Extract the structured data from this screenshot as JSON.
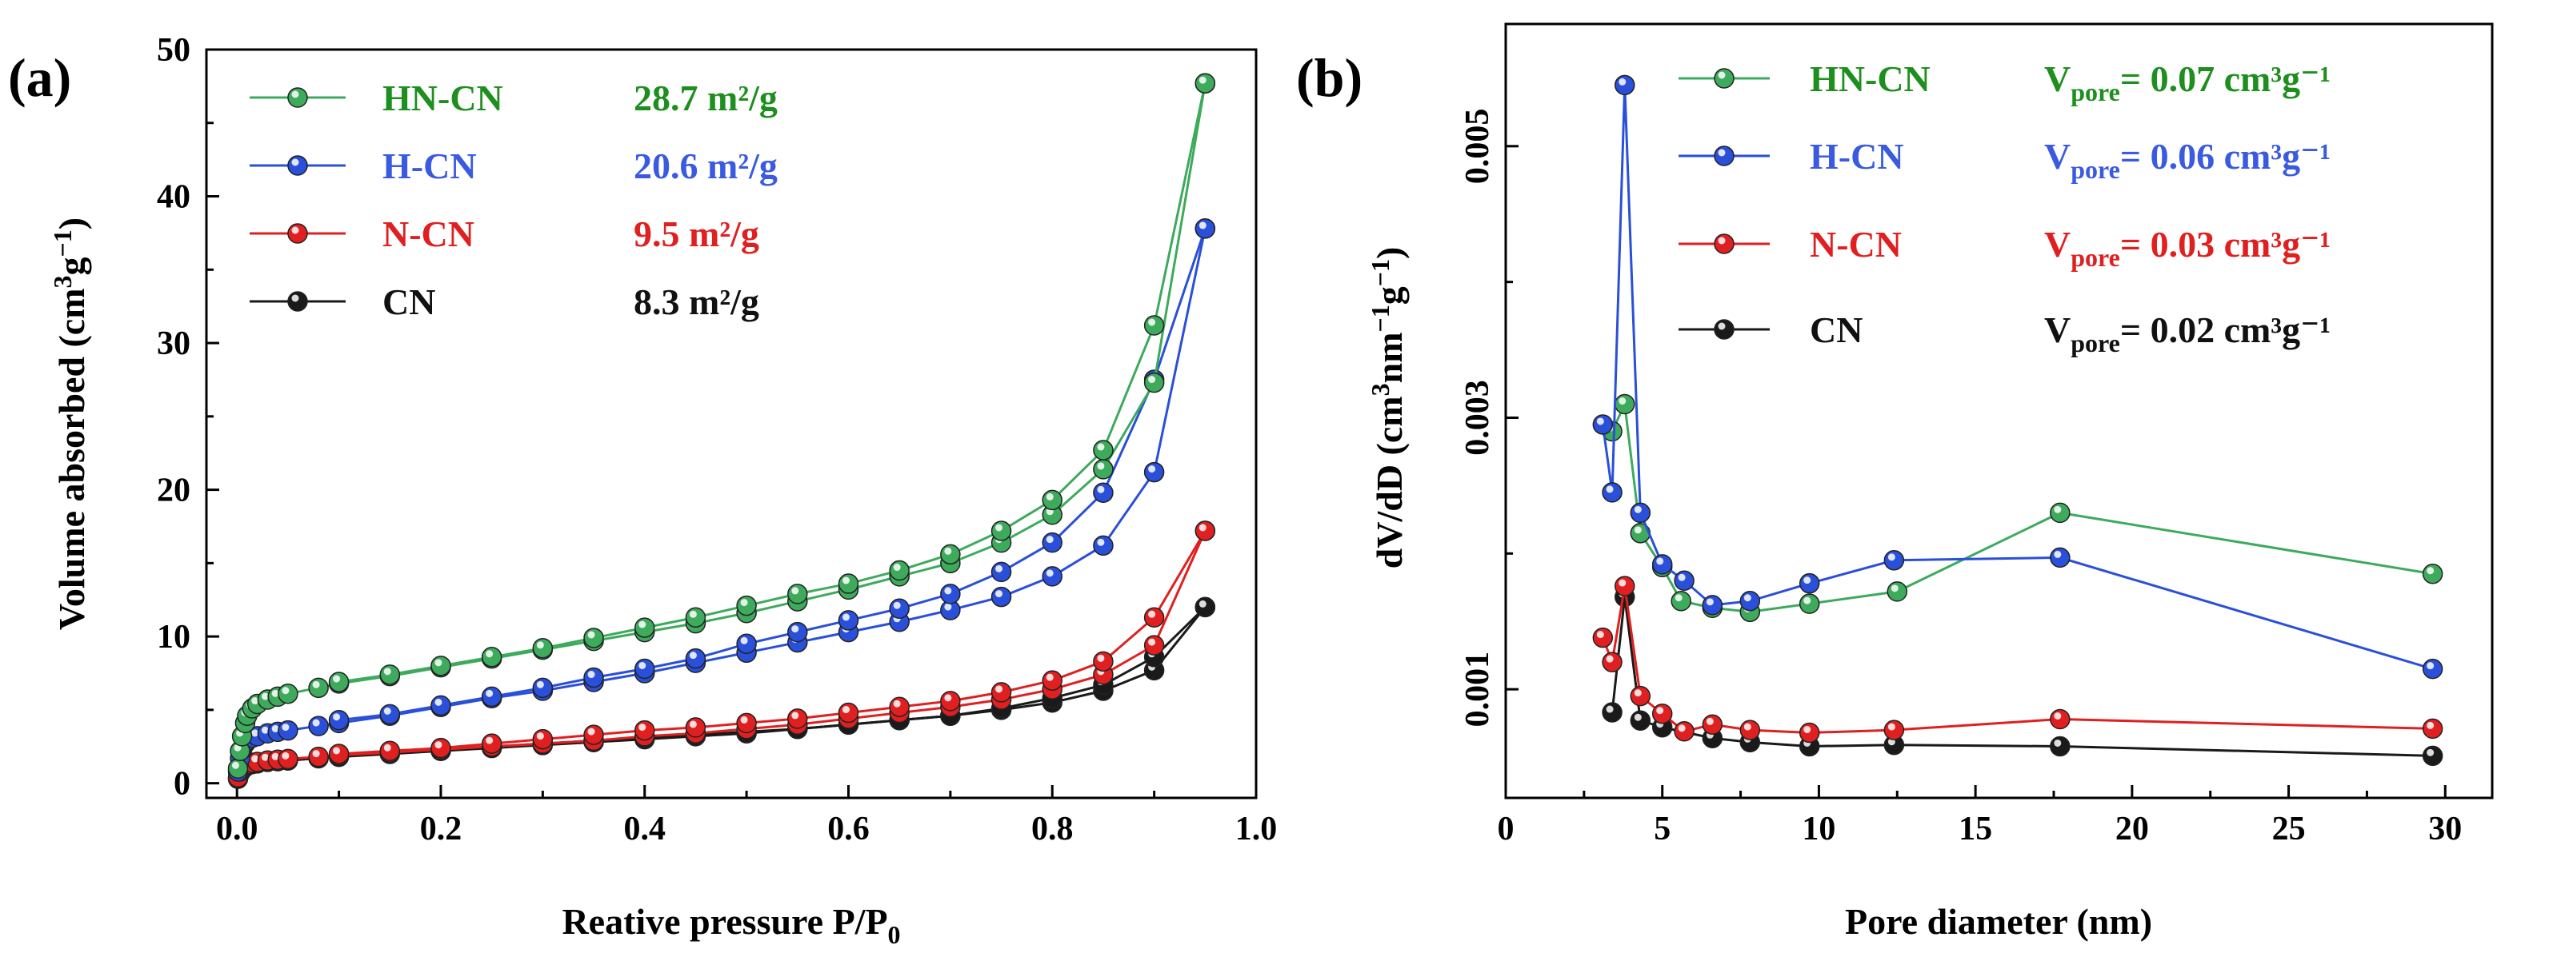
{
  "chart_data": [
    {
      "panel": "(a)",
      "type": "line",
      "xlabel": "Reative pressure P/P",
      "xlabel_sub": "0",
      "ylabel": "Volume absorbed (cm3g-1)",
      "xlim": [
        -0.03,
        1.0
      ],
      "ylim": [
        -1,
        50
      ],
      "xticks": [
        0.0,
        0.2,
        0.4,
        0.6,
        0.8,
        1.0
      ],
      "xtick_labels": [
        "0.0",
        "0.2",
        "0.4",
        "0.6",
        "0.8",
        "1.0"
      ],
      "yticks": [
        0,
        10,
        20,
        30,
        40,
        50
      ],
      "ytick_labels": [
        "0",
        "10",
        "20",
        "30",
        "40",
        "50"
      ],
      "legend_position": "top-left",
      "series": [
        {
          "name": "HN-CN",
          "color": "#3daa5c",
          "annotation": "28.7 m²/g",
          "annotation_color": "#1e8f1e",
          "adsorption": {
            "x": [
              0.001,
              0.003,
              0.005,
              0.008,
              0.01,
              0.015,
              0.02,
              0.03,
              0.04,
              0.05,
              0.08,
              0.1,
              0.15,
              0.2,
              0.25,
              0.3,
              0.35,
              0.4,
              0.45,
              0.5,
              0.55,
              0.6,
              0.65,
              0.7,
              0.75,
              0.8,
              0.85,
              0.9,
              0.95
            ],
            "y": [
              1.0,
              2.2,
              3.2,
              4.1,
              4.6,
              5.1,
              5.4,
              5.7,
              5.9,
              6.1,
              6.5,
              6.8,
              7.3,
              7.9,
              8.5,
              9.1,
              9.7,
              10.3,
              10.9,
              11.6,
              12.4,
              13.2,
              14.1,
              15.0,
              16.4,
              18.3,
              21.4,
              27.3,
              47.7
            ]
          },
          "desorption": {
            "x": [
              0.95,
              0.9,
              0.85,
              0.8,
              0.75,
              0.7,
              0.65,
              0.6,
              0.55,
              0.5,
              0.45,
              0.4,
              0.35,
              0.3,
              0.25,
              0.2,
              0.15,
              0.1
            ],
            "y": [
              47.7,
              31.2,
              22.7,
              19.3,
              17.2,
              15.6,
              14.5,
              13.6,
              12.9,
              12.1,
              11.3,
              10.6,
              9.9,
              9.2,
              8.6,
              8.0,
              7.4,
              6.9
            ]
          }
        },
        {
          "name": "H-CN",
          "color": "#2a4fd9",
          "annotation": "20.6 m²/g",
          "annotation_color": "#3a5be0",
          "adsorption": {
            "x": [
              0.001,
              0.003,
              0.005,
              0.008,
              0.01,
              0.015,
              0.02,
              0.03,
              0.04,
              0.05,
              0.08,
              0.1,
              0.15,
              0.2,
              0.25,
              0.3,
              0.35,
              0.4,
              0.45,
              0.5,
              0.55,
              0.6,
              0.65,
              0.7,
              0.75,
              0.8,
              0.85,
              0.9,
              0.95
            ],
            "y": [
              0.8,
              1.7,
              2.3,
              2.7,
              2.9,
              3.1,
              3.2,
              3.4,
              3.5,
              3.6,
              3.9,
              4.1,
              4.6,
              5.2,
              5.8,
              6.3,
              6.9,
              7.5,
              8.2,
              8.9,
              9.6,
              10.3,
              11.0,
              11.8,
              12.7,
              14.1,
              16.2,
              21.2,
              37.8
            ]
          },
          "desorption": {
            "x": [
              0.95,
              0.9,
              0.85,
              0.8,
              0.75,
              0.7,
              0.65,
              0.6,
              0.55,
              0.5,
              0.45,
              0.4,
              0.35,
              0.3,
              0.25,
              0.2,
              0.15,
              0.1
            ],
            "y": [
              37.8,
              27.5,
              19.8,
              16.4,
              14.4,
              12.9,
              11.9,
              11.1,
              10.3,
              9.5,
              8.5,
              7.8,
              7.2,
              6.5,
              5.9,
              5.3,
              4.7,
              4.3
            ]
          }
        },
        {
          "name": "N-CN",
          "color": "#e02020",
          "annotation": "9.5 m²/g",
          "annotation_color": "#e02020",
          "adsorption": {
            "x": [
              0.001,
              0.003,
              0.005,
              0.008,
              0.01,
              0.015,
              0.02,
              0.03,
              0.04,
              0.05,
              0.08,
              0.1,
              0.15,
              0.2,
              0.25,
              0.3,
              0.35,
              0.4,
              0.45,
              0.5,
              0.55,
              0.6,
              0.65,
              0.7,
              0.75,
              0.8,
              0.85,
              0.9,
              0.95
            ],
            "y": [
              0.4,
              0.8,
              1.0,
              1.2,
              1.3,
              1.4,
              1.45,
              1.55,
              1.6,
              1.65,
              1.8,
              1.9,
              2.1,
              2.3,
              2.5,
              2.7,
              2.9,
              3.2,
              3.4,
              3.7,
              4.0,
              4.4,
              4.8,
              5.2,
              5.7,
              6.4,
              7.4,
              9.4,
              17.2
            ]
          },
          "desorption": {
            "x": [
              0.95,
              0.9,
              0.85,
              0.8,
              0.75,
              0.7,
              0.65,
              0.6,
              0.55,
              0.5,
              0.45,
              0.4,
              0.35,
              0.3,
              0.25,
              0.2,
              0.15,
              0.1
            ],
            "y": [
              17.2,
              11.3,
              8.3,
              7.0,
              6.2,
              5.6,
              5.2,
              4.8,
              4.4,
              4.1,
              3.8,
              3.6,
              3.3,
              3.0,
              2.7,
              2.4,
              2.2,
              2.0
            ]
          }
        },
        {
          "name": "CN",
          "color": "#1a1a1a",
          "annotation": "8.3 m²/g",
          "annotation_color": "#111111",
          "adsorption": {
            "x": [
              0.001,
              0.003,
              0.005,
              0.008,
              0.01,
              0.015,
              0.02,
              0.03,
              0.04,
              0.05,
              0.08,
              0.1,
              0.15,
              0.2,
              0.25,
              0.3,
              0.35,
              0.4,
              0.45,
              0.5,
              0.55,
              0.6,
              0.65,
              0.7,
              0.75,
              0.8,
              0.85,
              0.9,
              0.95
            ],
            "y": [
              0.3,
              0.7,
              0.9,
              1.1,
              1.2,
              1.3,
              1.35,
              1.45,
              1.5,
              1.55,
              1.7,
              1.8,
              2.0,
              2.2,
              2.4,
              2.6,
              2.8,
              3.0,
              3.2,
              3.4,
              3.7,
              4.0,
              4.3,
              4.6,
              5.0,
              5.5,
              6.3,
              7.7,
              12.0
            ]
          },
          "desorption": {
            "x": [
              0.95,
              0.9,
              0.85,
              0.8,
              0.75,
              0.7,
              0.65,
              0.6,
              0.55,
              0.5,
              0.45,
              0.4,
              0.35,
              0.3,
              0.25,
              0.2,
              0.15,
              0.1
            ],
            "y": [
              12.0,
              8.6,
              6.7,
              5.8,
              5.1,
              4.6,
              4.3,
              4.0,
              3.7,
              3.5,
              3.3,
              3.1,
              2.9,
              2.7,
              2.5,
              2.3,
              2.1,
              1.9
            ]
          }
        }
      ]
    },
    {
      "panel": "(b)",
      "type": "line",
      "xlabel": "Pore diameter (nm)",
      "ylabel": "dV/dD (cm3nm-1g-1)",
      "xlim": [
        0,
        31.5
      ],
      "ylim": [
        0.0002,
        0.0059
      ],
      "xticks": [
        0,
        5,
        10,
        15,
        20,
        25,
        30
      ],
      "xtick_labels": [
        "0",
        "5",
        "10",
        "15",
        "20",
        "25",
        "30"
      ],
      "yticks": [
        0.001,
        0.003,
        0.005
      ],
      "ytick_labels": [
        "0.001",
        "0.003",
        "0.005"
      ],
      "legend_position": "top-right",
      "series": [
        {
          "name": "HN-CN",
          "color": "#3daa5c",
          "annotation": "V",
          "annotation_sub": "pore",
          "annotation_rest": "= 0.07 cm³g⁻¹",
          "annotation_color": "#1e8f1e",
          "x": [
            3.4,
            3.8,
            4.3,
            5.0,
            5.6,
            6.6,
            7.8,
            9.7,
            12.5,
            17.7,
            29.6
          ],
          "y": [
            0.0029,
            0.0031,
            0.00215,
            0.0019,
            0.00165,
            0.0016,
            0.00157,
            0.00163,
            0.00172,
            0.0023,
            0.00185
          ]
        },
        {
          "name": "H-CN",
          "color": "#2a4fd9",
          "annotation": "V",
          "annotation_sub": "pore",
          "annotation_rest": "= 0.06 cm³g⁻¹",
          "annotation_color": "#3a5be0",
          "x": [
            3.1,
            3.4,
            3.8,
            4.3,
            5.0,
            5.7,
            6.6,
            7.8,
            9.7,
            12.4,
            17.7,
            29.6
          ],
          "y": [
            0.00295,
            0.00245,
            0.00545,
            0.0023,
            0.00192,
            0.0018,
            0.00162,
            0.00165,
            0.00178,
            0.00195,
            0.00197,
            0.00115
          ]
        },
        {
          "name": "N-CN",
          "color": "#e02020",
          "annotation": "V",
          "annotation_sub": "pore",
          "annotation_rest": "= 0.03 cm³g⁻¹",
          "annotation_color": "#e02020",
          "x": [
            3.1,
            3.4,
            3.8,
            4.3,
            5.0,
            5.7,
            6.6,
            7.8,
            9.7,
            12.4,
            17.7,
            29.6
          ],
          "y": [
            0.00138,
            0.0012,
            0.00176,
            0.00095,
            0.00082,
            0.00069,
            0.00074,
            0.0007,
            0.00068,
            0.0007,
            0.00078,
            0.00071
          ]
        },
        {
          "name": "CN",
          "color": "#1a1a1a",
          "annotation": "V",
          "annotation_sub": "pore",
          "annotation_rest": "= 0.02 cm³g⁻¹",
          "annotation_color": "#111111",
          "x": [
            3.4,
            3.8,
            4.3,
            5.0,
            6.6,
            7.8,
            9.7,
            12.4,
            17.7,
            29.6
          ],
          "y": [
            0.00083,
            0.00168,
            0.00077,
            0.00072,
            0.00064,
            0.00061,
            0.00058,
            0.00059,
            0.00058,
            0.00051
          ]
        }
      ]
    }
  ]
}
